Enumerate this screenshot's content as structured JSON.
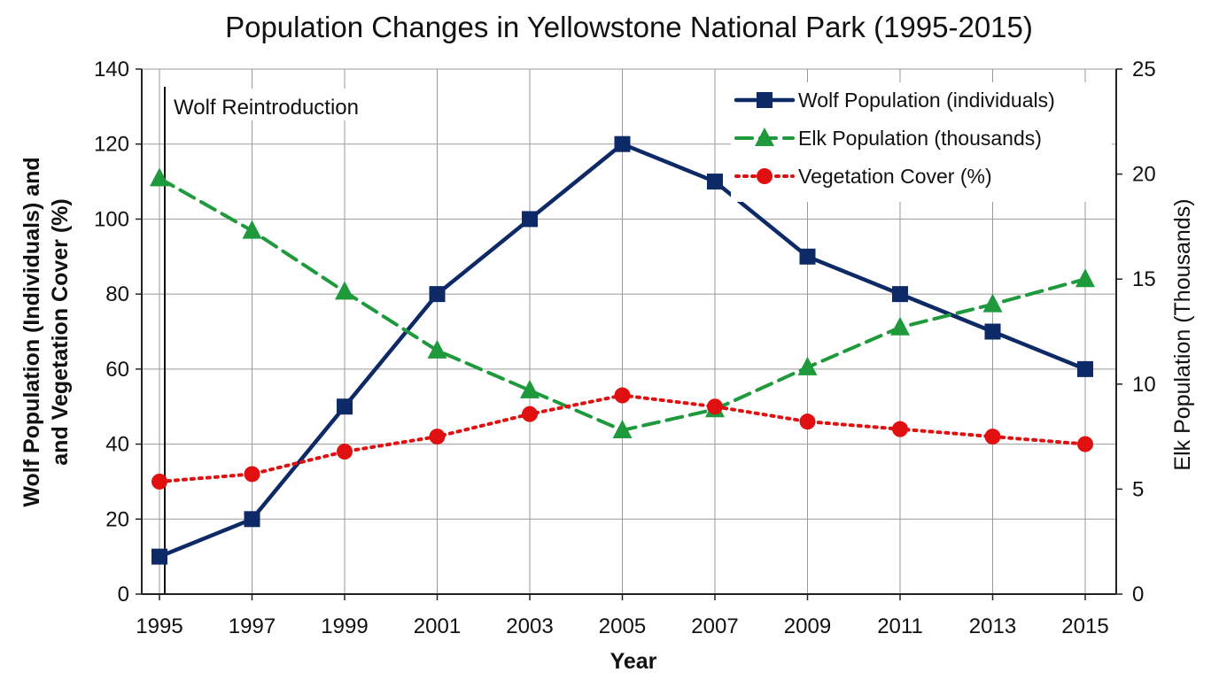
{
  "chart_data": {
    "type": "line",
    "title": "Population Changes in Yellowstone National Park (1995-2015)",
    "xlabel": "Year",
    "ylabel": "Wolf Population (Individuals) and and Vegetation Cover (%)",
    "ylabel_lines": [
      "Wolf Population (Individuals) and",
      "and Vegetation Cover (%)"
    ],
    "y2label": "Elk Population (Thousands)",
    "categories": [
      "1995",
      "1997",
      "1999",
      "2001",
      "2003",
      "2005",
      "2007",
      "2009",
      "2011",
      "2013",
      "2015"
    ],
    "ylim": [
      0,
      140
    ],
    "yticks": [
      0,
      20,
      40,
      60,
      80,
      100,
      120,
      140
    ],
    "y2lim": [
      0,
      25
    ],
    "y2ticks": [
      0,
      5,
      10,
      15,
      20,
      25
    ],
    "grid": true,
    "legend_position": "top-right",
    "annotation": {
      "label": "Wolf Reintroduction",
      "x": "1995"
    },
    "series": [
      {
        "name": "Wolf Population (individuals)",
        "axis": "left",
        "values": [
          10,
          20,
          50,
          80,
          100,
          120,
          110,
          90,
          80,
          70,
          60
        ],
        "color": "#0d2a66",
        "line_style": "solid",
        "marker": "square"
      },
      {
        "name": "Elk Population (thousands)",
        "axis": "right",
        "values": [
          19.8,
          17.3,
          14.4,
          11.6,
          9.7,
          7.8,
          8.8,
          10.8,
          12.7,
          13.8,
          15.0
        ],
        "color": "#1e9a3c",
        "line_style": "dashed",
        "marker": "triangle"
      },
      {
        "name": "Vegetation Cover (%)",
        "axis": "left",
        "values": [
          30,
          32,
          38,
          42,
          48,
          53,
          50,
          46,
          44,
          42,
          40
        ],
        "color": "#e01010",
        "line_style": "dotted",
        "marker": "circle"
      }
    ]
  }
}
